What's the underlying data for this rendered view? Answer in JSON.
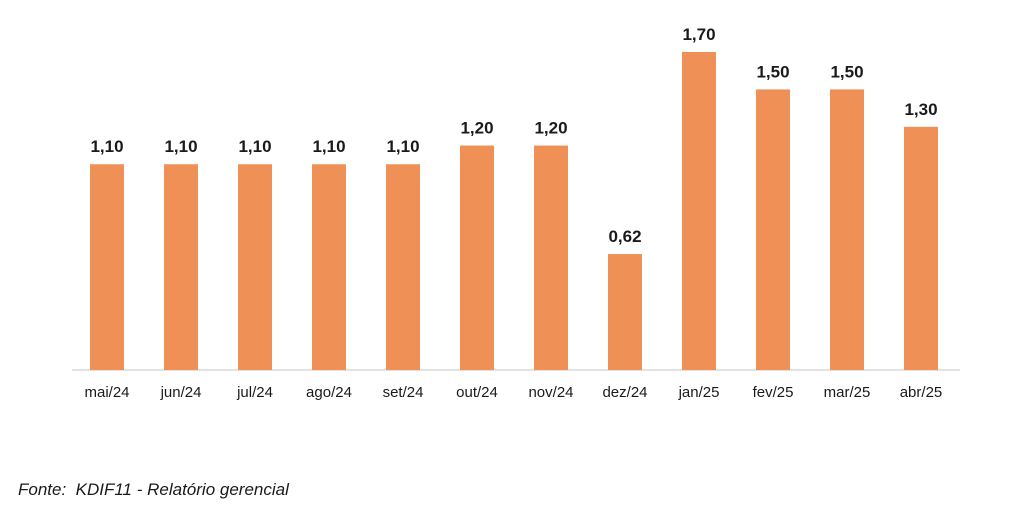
{
  "chart_data": {
    "type": "bar",
    "categories": [
      "mai/24",
      "jun/24",
      "jul/24",
      "ago/24",
      "set/24",
      "out/24",
      "nov/24",
      "dez/24",
      "jan/25",
      "fev/25",
      "mar/25",
      "abr/25"
    ],
    "values": [
      1.1,
      1.1,
      1.1,
      1.1,
      1.1,
      1.2,
      1.2,
      0.62,
      1.7,
      1.5,
      1.5,
      1.3
    ],
    "value_labels": [
      "1,10",
      "1,10",
      "1,10",
      "1,10",
      "1,10",
      "1,20",
      "1,20",
      "0,62",
      "1,70",
      "1,50",
      "1,50",
      "1,30"
    ],
    "title": "",
    "xlabel": "",
    "ylabel": "",
    "ylim": [
      0,
      1.7
    ],
    "grid": false,
    "bar_color": "#ef9157",
    "axis_color": "#d9d9d9"
  },
  "source_note": "Fonte:  KDIF11 - Relatório gerencial"
}
